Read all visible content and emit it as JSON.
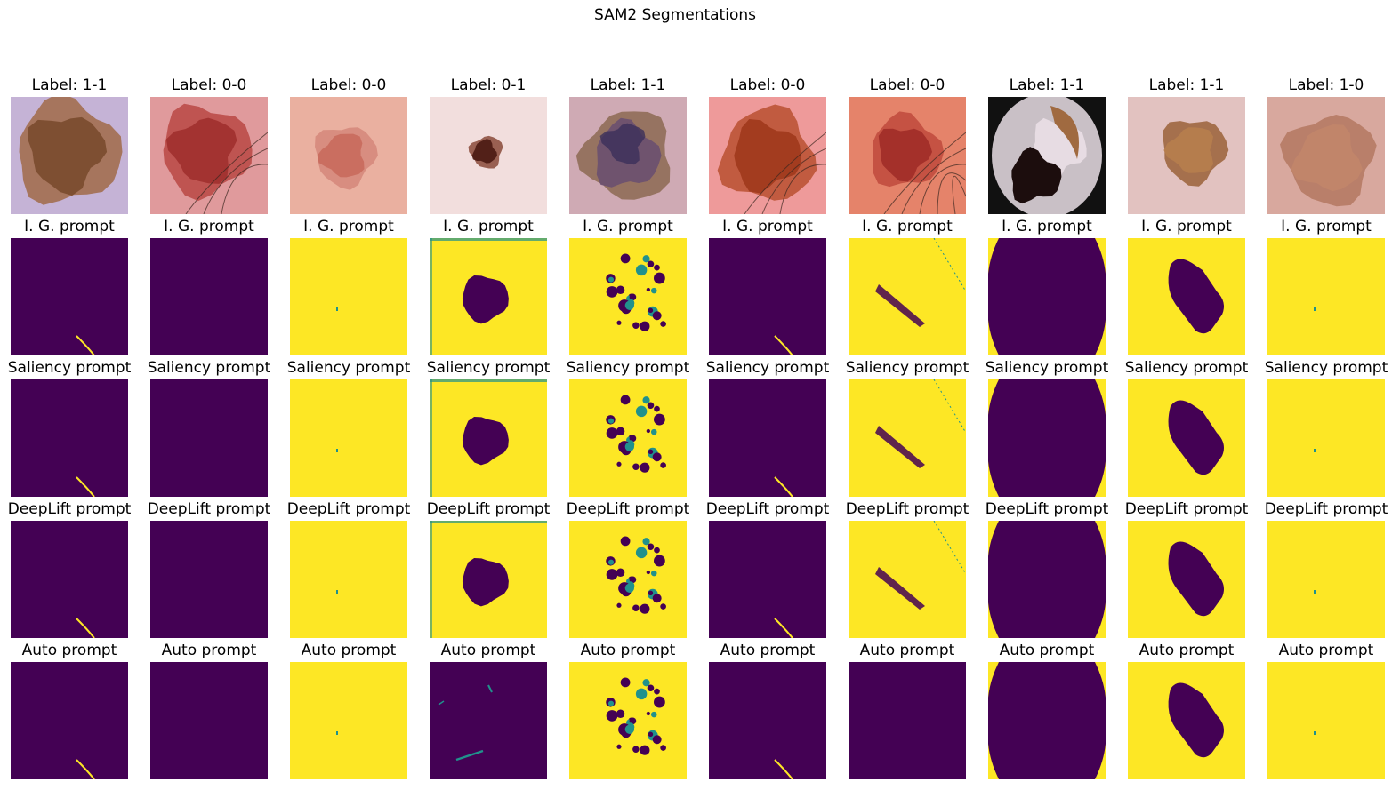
{
  "figure": {
    "title": "SAM2 Segmentations",
    "colors": {
      "mask_bg": "#440154",
      "mask_fg": "#fde725",
      "edge": "#21918c"
    }
  },
  "columns": [
    {
      "label": "Label: 1-1",
      "skin": "#c5b3d6",
      "lesion": "#7a4b2e",
      "lesion2": "#a06a48",
      "masks": {
        "ig": "dark-hair",
        "saliency": "dark-hair",
        "deeplift": "dark-hair",
        "auto": "dark-hair"
      }
    },
    {
      "label": "Label: 0-0",
      "skin": "#e09a9c",
      "lesion": "#a0302e",
      "lesion2": "#b84844",
      "masks": {
        "ig": "dark",
        "saliency": "dark",
        "deeplift": "dark",
        "auto": "dark"
      }
    },
    {
      "label": "Label: 0-0",
      "skin": "#eab0a0",
      "lesion": "#c96a5c",
      "lesion2": "#d5877a",
      "masks": {
        "ig": "yellow",
        "saliency": "yellow",
        "deeplift": "yellow",
        "auto": "yellow"
      }
    },
    {
      "label": "Label: 0-1",
      "skin": "#f2dedd",
      "lesion": "#4a1a12",
      "lesion2": "#8a4a3a",
      "masks": {
        "ig": "yellow-blob",
        "saliency": "yellow-blob",
        "deeplift": "yellow-blob",
        "auto": "dark-streaks"
      }
    },
    {
      "label": "Label: 1-1",
      "skin": "#cfaab4",
      "lesion": "#6a5070",
      "lesion2": "#8c6a52",
      "masks": {
        "ig": "yellow-speckle",
        "saliency": "yellow-speckle",
        "deeplift": "yellow-speckle",
        "auto": "yellow-speckle"
      }
    },
    {
      "label": "Label: 0-0",
      "skin": "#ee9a9a",
      "lesion": "#a0381c",
      "lesion2": "#b85030",
      "masks": {
        "ig": "dark-hair",
        "saliency": "dark-hair",
        "deeplift": "dark-hair",
        "auto": "dark-hair"
      }
    },
    {
      "label": "Label: 0-0",
      "skin": "#e5836a",
      "lesion": "#a02c28",
      "lesion2": "#c04a3c",
      "masks": {
        "ig": "yellow-streak",
        "saliency": "yellow-streak",
        "deeplift": "yellow-streak",
        "auto": "dark"
      }
    },
    {
      "label": "Label: 1-1",
      "skin": "#c9c0c6",
      "lesion": "#1c0d0d",
      "lesion2": "#a06a40",
      "masks": {
        "ig": "dark-vignette",
        "saliency": "dark-vignette",
        "deeplift": "dark-vignette",
        "auto": "dark-vignette"
      }
    },
    {
      "label": "Label: 1-1",
      "skin": "#e2c2c0",
      "lesion": "#b77e4e",
      "lesion2": "#9a6238",
      "masks": {
        "ig": "yellow-mole",
        "saliency": "yellow-mole",
        "deeplift": "yellow-mole",
        "auto": "yellow-mole"
      }
    },
    {
      "label": "Label: 1-0",
      "skin": "#d8a89e",
      "lesion": "#c2866a",
      "lesion2": "#b47860",
      "masks": {
        "ig": "yellow",
        "saliency": "yellow",
        "deeplift": "yellow",
        "auto": "yellow"
      }
    }
  ],
  "rows": [
    {
      "key": "ig",
      "title": "I. G. prompt"
    },
    {
      "key": "saliency",
      "title": "Saliency prompt"
    },
    {
      "key": "deeplift",
      "title": "DeepLift prompt"
    },
    {
      "key": "auto",
      "title": "Auto prompt"
    }
  ]
}
